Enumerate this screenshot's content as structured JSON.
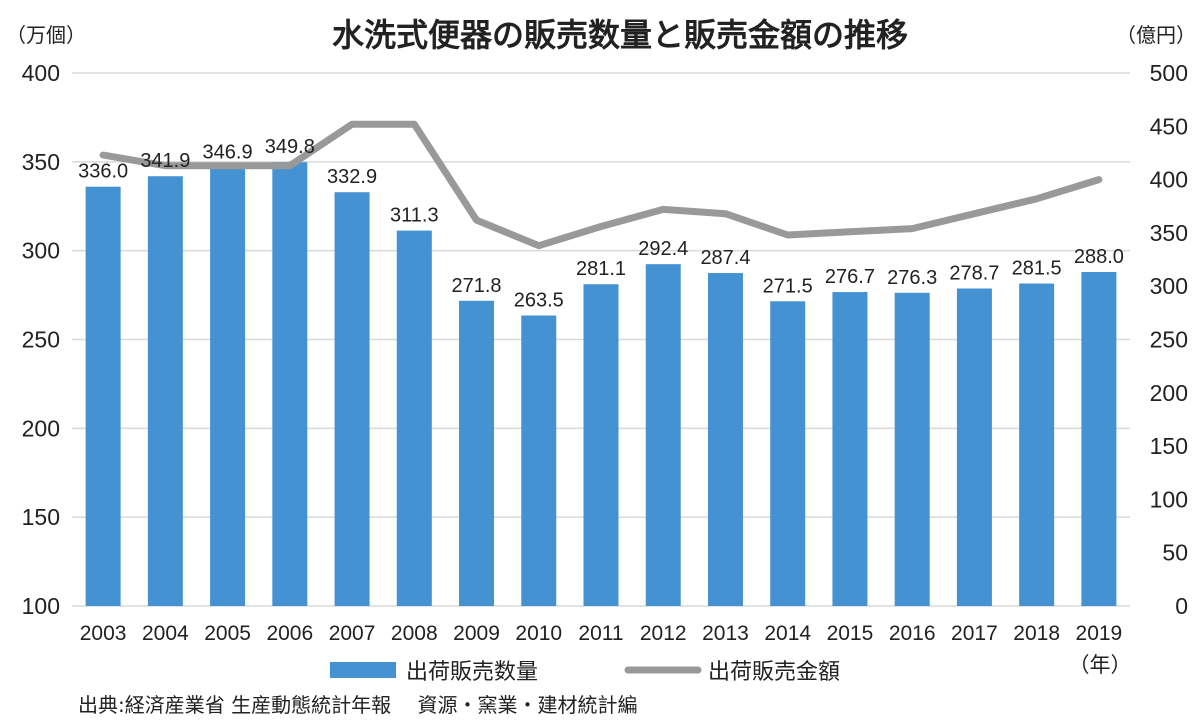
{
  "chart_data": {
    "type": "bar+line",
    "title": "水洗式便器の販売数量と販売金額の推移",
    "left_unit": "（万個）",
    "right_unit": "（億円）",
    "x_unit": "（年）",
    "categories": [
      "2003",
      "2004",
      "2005",
      "2006",
      "2007",
      "2008",
      "2009",
      "2010",
      "2011",
      "2012",
      "2013",
      "2014",
      "2015",
      "2016",
      "2017",
      "2018",
      "2019"
    ],
    "series": [
      {
        "name": "出荷販売数量",
        "type": "bar",
        "axis": "left",
        "color": "#4592d3",
        "values": [
          336.0,
          341.9,
          346.9,
          349.8,
          332.9,
          311.3,
          271.8,
          263.5,
          281.1,
          292.4,
          287.4,
          271.5,
          276.7,
          276.3,
          278.7,
          281.5,
          288.0
        ],
        "labels": [
          "336.0",
          "341.9",
          "346.9",
          "349.8",
          "332.9",
          "311.3",
          "271.8",
          "263.5",
          "281.1",
          "292.4",
          "287.4",
          "271.5",
          "276.7",
          "276.3",
          "278.7",
          "281.5",
          "288.0"
        ]
      },
      {
        "name": "出荷販売金額",
        "type": "line",
        "axis": "right",
        "color": "#999999",
        "values": [
          423,
          413,
          413,
          413,
          452,
          452,
          362,
          338,
          356,
          372,
          368,
          348,
          351,
          354,
          368,
          382,
          400
        ]
      }
    ],
    "y_left": {
      "min": 100,
      "max": 400,
      "ticks": [
        100,
        150,
        200,
        250,
        300,
        350,
        400
      ]
    },
    "y_right": {
      "min": 0,
      "max": 500,
      "ticks": [
        0,
        50,
        100,
        150,
        200,
        250,
        300,
        350,
        400,
        450,
        500
      ]
    },
    "grid": true,
    "legend_position": "bottom",
    "source": "出典:経済産業省 生産動態統計年報　 資源・窯業・建材統計編"
  }
}
